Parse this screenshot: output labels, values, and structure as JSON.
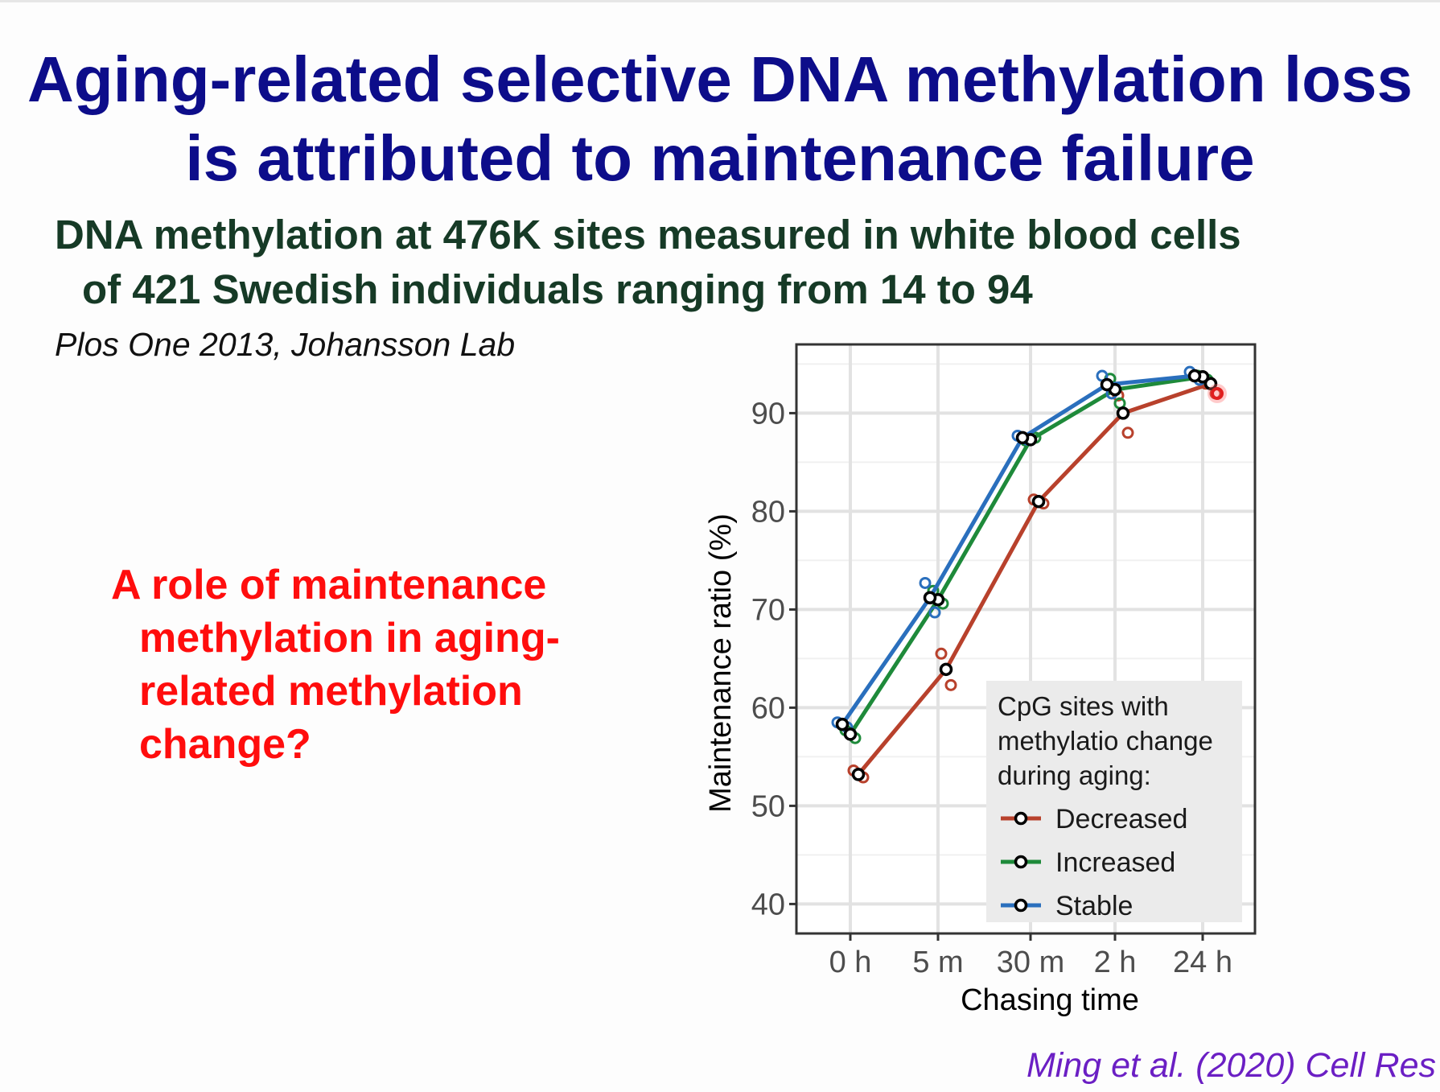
{
  "slide": {
    "title_lines": [
      "Aging-related selective DNA methylation loss",
      "is attributed to maintenance failure"
    ],
    "subtitle_lines": [
      "DNA methylation at 476K sites measured in white blood cells",
      "of 421 Swedish individuals ranging from 14 to 94"
    ],
    "citation": "Plos One 2013, Johansson Lab",
    "question_lines": [
      "A role of maintenance",
      "methylation in aging-",
      "related methylation",
      "change?"
    ],
    "reference": "Ming et al. (2020) Cell Res"
  },
  "colors": {
    "title": "#0d0d8a",
    "subtitle": "#163a26",
    "question": "#ff0d0d",
    "reference": "#6b1fc4",
    "decreased": "#b8412c",
    "increased": "#1e8a3a",
    "stable": "#2a6fbd"
  },
  "chart_data": {
    "type": "line",
    "xlabel": "Chasing time",
    "ylabel": "Maintenance ratio (%)",
    "categories": [
      "0 h",
      "5 m",
      "30 m",
      "2 h",
      "24 h"
    ],
    "ylim": [
      37,
      97
    ],
    "yticks": [
      40,
      50,
      60,
      70,
      80,
      90
    ],
    "grid": true,
    "legend": {
      "title_lines": [
        "CpG sites with",
        "methylatio change",
        "during aging:"
      ],
      "position": "bottom-right",
      "entries": [
        "Decreased",
        "Increased",
        "Stable"
      ]
    },
    "series": [
      {
        "name": "Decreased",
        "color": "#b8412c",
        "values": [
          53.2,
          63.9,
          81.0,
          90.0,
          93.0
        ],
        "replicates": [
          [
            53.6,
            52.9
          ],
          [
            65.5,
            62.3
          ],
          [
            81.2,
            80.8
          ],
          [
            91.8,
            88.0
          ],
          [
            93.0,
            92.0
          ]
        ]
      },
      {
        "name": "Increased",
        "color": "#1e8a3a",
        "values": [
          57.3,
          71.0,
          87.3,
          92.4,
          93.7
        ],
        "replicates": [
          [
            57.7,
            56.9
          ],
          [
            71.9,
            70.6
          ],
          [
            87.2,
            87.5
          ],
          [
            93.5,
            91.0
          ],
          [
            93.8,
            93.4
          ]
        ]
      },
      {
        "name": "Stable",
        "color": "#2a6fbd",
        "values": [
          58.3,
          71.2,
          87.5,
          92.9,
          93.8
        ],
        "replicates": [
          [
            58.5,
            58.0
          ],
          [
            72.7,
            69.7
          ],
          [
            87.7,
            87.3
          ],
          [
            93.8,
            92.0
          ],
          [
            94.2,
            93.4
          ]
        ]
      }
    ]
  }
}
